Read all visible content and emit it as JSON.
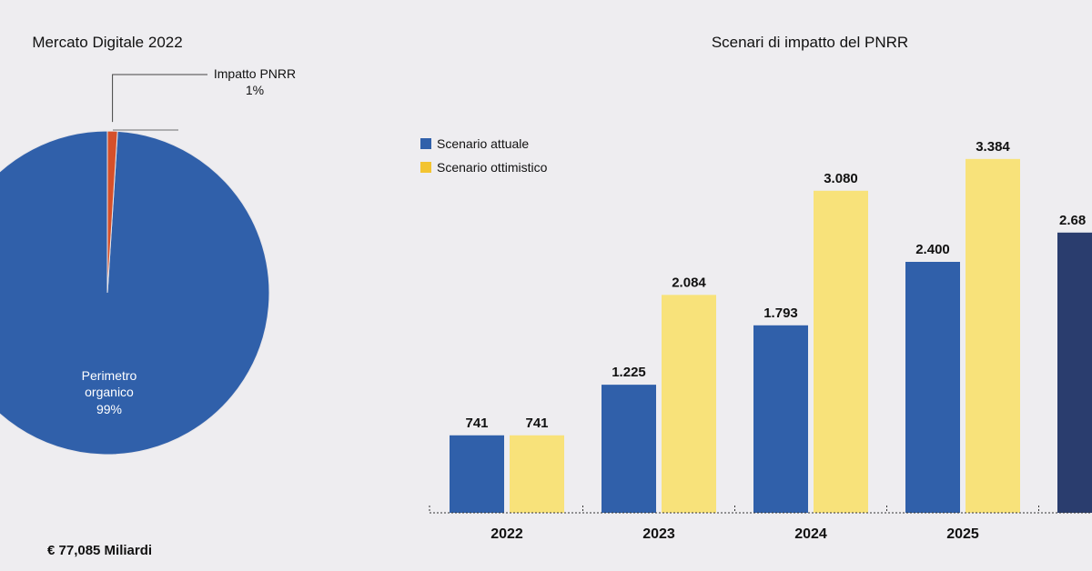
{
  "pie": {
    "title": "Mercato Digitale 2022",
    "total_label": "€ 77,085 Miliardi",
    "colors": {
      "organico": "#3060aa",
      "pnrr": "#d5502a",
      "outline": "#e7e6ea",
      "leader": "#444444"
    },
    "slices": [
      {
        "name": "Perimetro organico",
        "line1": "Perimetro",
        "line2": "organico",
        "pct": "99%",
        "value": 99
      },
      {
        "name": "Impatto PNRR",
        "line1": "Impatto PNRR",
        "pct": "1%",
        "value": 1
      }
    ]
  },
  "chart_data": {
    "type": "bar",
    "title": "Scenari di impatto del PNRR",
    "categories": [
      "2022",
      "2023",
      "2024",
      "2025"
    ],
    "series": [
      {
        "name": "Scenario attuale",
        "color": "#3060aa",
        "values": [
          741,
          1225,
          1793,
          2400
        ],
        "labels": [
          "741",
          "1.225",
          "1.793",
          "2.400"
        ]
      },
      {
        "name": "Scenario ottimistico",
        "color": "#f8e27a",
        "legend_color": "#f3c431",
        "values": [
          741,
          2084,
          3080,
          3384
        ],
        "labels": [
          "741",
          "2.084",
          "3.080",
          "3.384"
        ]
      }
    ],
    "partial_bar": {
      "value": 2680,
      "label": "2.68",
      "color": "#2a3d6e"
    },
    "ylim": [
      0,
      3600
    ],
    "legend_position": "top-left",
    "grid": false
  }
}
